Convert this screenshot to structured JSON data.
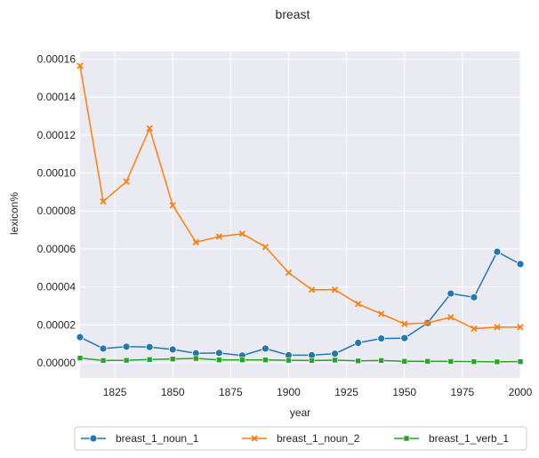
{
  "chart_data": {
    "type": "line",
    "title": "breast",
    "xlabel": "year",
    "ylabel": "lexicon%",
    "xlim": [
      1810,
      2000
    ],
    "ylim": [
      -8e-06,
      0.000164
    ],
    "grid": true,
    "legend_position": "bottom",
    "x_ticks": [
      1825,
      1850,
      1875,
      1900,
      1925,
      1950,
      1975,
      2000
    ],
    "x_tick_labels": [
      "1825",
      "1850",
      "1875",
      "1900",
      "1925",
      "1950",
      "1975",
      "2000"
    ],
    "y_ticks": [
      0,
      2e-05,
      4e-05,
      6e-05,
      8e-05,
      0.0001,
      0.00012,
      0.00014,
      0.00016
    ],
    "y_tick_labels": [
      "0.00000",
      "0.00002",
      "0.00004",
      "0.00006",
      "0.00008",
      "0.00010",
      "0.00012",
      "0.00014",
      "0.00016"
    ],
    "x": [
      1810,
      1820,
      1830,
      1840,
      1850,
      1860,
      1870,
      1880,
      1890,
      1900,
      1910,
      1920,
      1930,
      1940,
      1950,
      1960,
      1970,
      1980,
      1990,
      2000
    ],
    "series": [
      {
        "name": "breast_1_noun_1",
        "color": "#1f77b4",
        "marker": "circle",
        "values": [
          1.35e-05,
          7.5e-06,
          8.5e-06,
          8.3e-06,
          7e-06,
          5e-06,
          5.2e-06,
          3.8e-06,
          7.5e-06,
          4e-06,
          4e-06,
          4.8e-06,
          1.05e-05,
          1.28e-05,
          1.3e-05,
          2.1e-05,
          3.65e-05,
          3.45e-05,
          5.85e-05,
          5.2e-05
        ]
      },
      {
        "name": "breast_1_noun_2",
        "color": "#ff7f0e",
        "marker": "x",
        "values": [
          0.0001565,
          8.5e-05,
          9.55e-05,
          0.0001235,
          8.3e-05,
          6.35e-05,
          6.65e-05,
          6.8e-05,
          6.1e-05,
          4.75e-05,
          3.85e-05,
          3.85e-05,
          3.1e-05,
          2.58e-05,
          2.05e-05,
          2.1e-05,
          2.4e-05,
          1.8e-05,
          1.88e-05,
          1.88e-05
        ]
      },
      {
        "name": "breast_1_verb_1",
        "color": "#2ca02c",
        "marker": "square",
        "values": [
          2.5e-06,
          1.2e-06,
          1.3e-06,
          1.7e-06,
          2e-06,
          2.3e-06,
          1.5e-06,
          1.5e-06,
          1.5e-06,
          1.3e-06,
          1.2e-06,
          1.4e-06,
          1e-06,
          1.2e-06,
          8e-07,
          8e-07,
          7e-07,
          6e-07,
          5e-07,
          6e-07
        ]
      }
    ]
  }
}
